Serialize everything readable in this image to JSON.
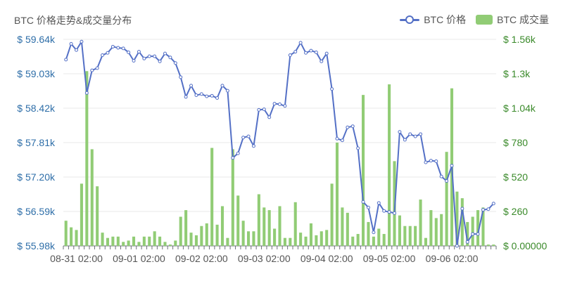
{
  "chart_data": {
    "type": "line+bar",
    "title": "BTC 价格走势&成交量分布",
    "legend_position": "top-right",
    "colors": {
      "price": "#5470c6",
      "volume": "#91cc75",
      "left_axis_text": "#2e6ea8",
      "right_axis_text": "#3a8a2a",
      "grid": "#e8e8e8"
    },
    "y_left": {
      "ticks": [
        "$ 59.64k",
        "$ 59.03k",
        "$ 58.42k",
        "$ 57.81k",
        "$ 57.20k",
        "$ 56.59k",
        "$ 55.98k"
      ],
      "range": [
        55980,
        59640
      ]
    },
    "y_right": {
      "ticks": [
        "$ 1.56k",
        "$ 1.3k",
        "$ 1.04k",
        "$ 780",
        "$ 520",
        "$ 260",
        "$ 0.00000"
      ],
      "range": [
        0,
        1560
      ]
    },
    "x_ticks": [
      "08-31 02:00",
      "09-01 02:00",
      "09-02 02:00",
      "09-03 02:00",
      "09-04 02:00",
      "09-05 02:00",
      "09-06 02:00"
    ],
    "x_tick_positions": [
      2,
      14,
      26,
      38,
      50,
      62,
      74
    ],
    "series": [
      {
        "name": "BTC 价格",
        "type": "line",
        "values": [
          59280,
          59560,
          59450,
          59600,
          58690,
          59090,
          59130,
          59360,
          59400,
          59510,
          59490,
          59480,
          59410,
          59260,
          59420,
          59300,
          59340,
          59340,
          59250,
          59390,
          59320,
          59220,
          58970,
          58620,
          58820,
          58650,
          58670,
          58630,
          58640,
          58600,
          58820,
          58730,
          57540,
          57620,
          57900,
          57920,
          57750,
          58390,
          58400,
          58260,
          58500,
          58490,
          58460,
          59360,
          59420,
          59580,
          59400,
          59440,
          59410,
          59250,
          59390,
          58760,
          57880,
          57850,
          58080,
          58100,
          57710,
          56760,
          56660,
          56220,
          56740,
          56600,
          56580,
          56560,
          58000,
          57860,
          57960,
          57920,
          57960,
          57460,
          57490,
          57480,
          57210,
          57130,
          57400,
          55980,
          56640,
          56050,
          56190,
          56190,
          56620,
          56630,
          56730
        ]
      },
      {
        "name": "BTC 成交量",
        "type": "bar",
        "values": [
          190,
          140,
          120,
          470,
          1320,
          730,
          450,
          100,
          60,
          70,
          70,
          30,
          40,
          70,
          30,
          70,
          70,
          110,
          70,
          30,
          10,
          40,
          220,
          270,
          100,
          80,
          150,
          170,
          740,
          160,
          300,
          60,
          730,
          380,
          190,
          110,
          110,
          390,
          290,
          270,
          130,
          300,
          60,
          60,
          330,
          100,
          70,
          170,
          80,
          110,
          120,
          470,
          780,
          290,
          250,
          70,
          90,
          1140,
          180,
          70,
          130,
          90,
          1220,
          640,
          230,
          150,
          150,
          150,
          350,
          60,
          270,
          210,
          240,
          710,
          1190,
          410,
          360,
          180,
          220,
          270,
          290,
          10,
          10
        ]
      }
    ]
  }
}
